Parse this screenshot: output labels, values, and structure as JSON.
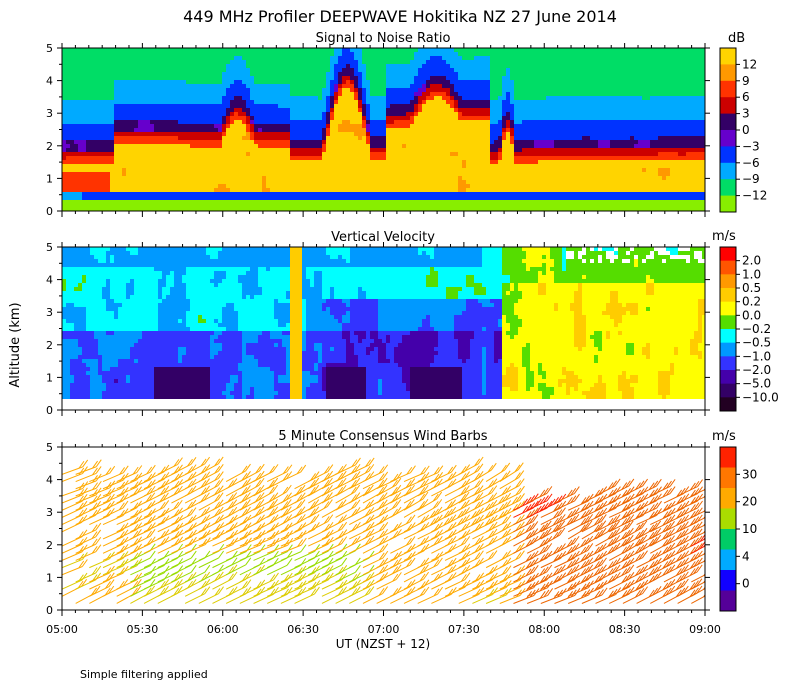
{
  "figure": {
    "title": "449 MHz Profiler DEEPWAVE Hokitika NZ 27 June 2014",
    "ylabel": "Altitude (km)",
    "xlabel": "UT  (NZST + 12)",
    "footnote": "Simple filtering applied",
    "x_ticks": [
      "05:00",
      "05:30",
      "06:00",
      "06:30",
      "07:00",
      "07:30",
      "08:00",
      "08:30",
      "09:00"
    ],
    "y_ticks": [
      "0",
      "1",
      "2",
      "3",
      "4",
      "5"
    ]
  },
  "chart_data": [
    {
      "type": "heatmap",
      "title": "Signal to Noise Ratio",
      "xlim": [
        "05:00",
        "09:00"
      ],
      "ylim": [
        0,
        5
      ],
      "colorbar": {
        "unit": "dB",
        "ticks": [
          "12",
          "9",
          "6",
          "3",
          "0",
          "−3",
          "−6",
          "−9",
          "−12"
        ],
        "colors": [
          "#ffd400",
          "#ff9900",
          "#ff3300",
          "#cc0000",
          "#330066",
          "#6600cc",
          "#0033ff",
          "#00aaff",
          "#00dd66",
          "#88ee00"
        ]
      }
    },
    {
      "type": "heatmap",
      "title": "Vertical Velocity",
      "xlim": [
        "05:00",
        "09:00"
      ],
      "ylim": [
        0,
        5
      ],
      "colorbar": {
        "unit": "m/s",
        "ticks": [
          "2.0",
          "1.0",
          "0.5",
          "0.2",
          "0.0",
          "−0.2",
          "−0.5",
          "−1.0",
          "−2.0",
          "−5.0",
          "−10.0"
        ],
        "colors": [
          "#ff0000",
          "#ff5500",
          "#ff9900",
          "#ffcc00",
          "#ffff00",
          "#55dd00",
          "#00ffff",
          "#0099ff",
          "#3333ff",
          "#4400aa",
          "#330066",
          "#220022"
        ]
      }
    },
    {
      "type": "scatter",
      "title": "5 Minute Consensus Wind Barbs",
      "xlim": [
        "05:00",
        "09:00"
      ],
      "ylim": [
        0,
        5
      ],
      "colorbar": {
        "unit": "m/s",
        "ticks": [
          "30",
          "20",
          "10",
          "4",
          "0"
        ],
        "colors": [
          "#ff2200",
          "#ff7700",
          "#ffaa00",
          "#aadd00",
          "#00cc66",
          "#00aaff",
          "#1100ff",
          "#550099"
        ]
      }
    }
  ]
}
